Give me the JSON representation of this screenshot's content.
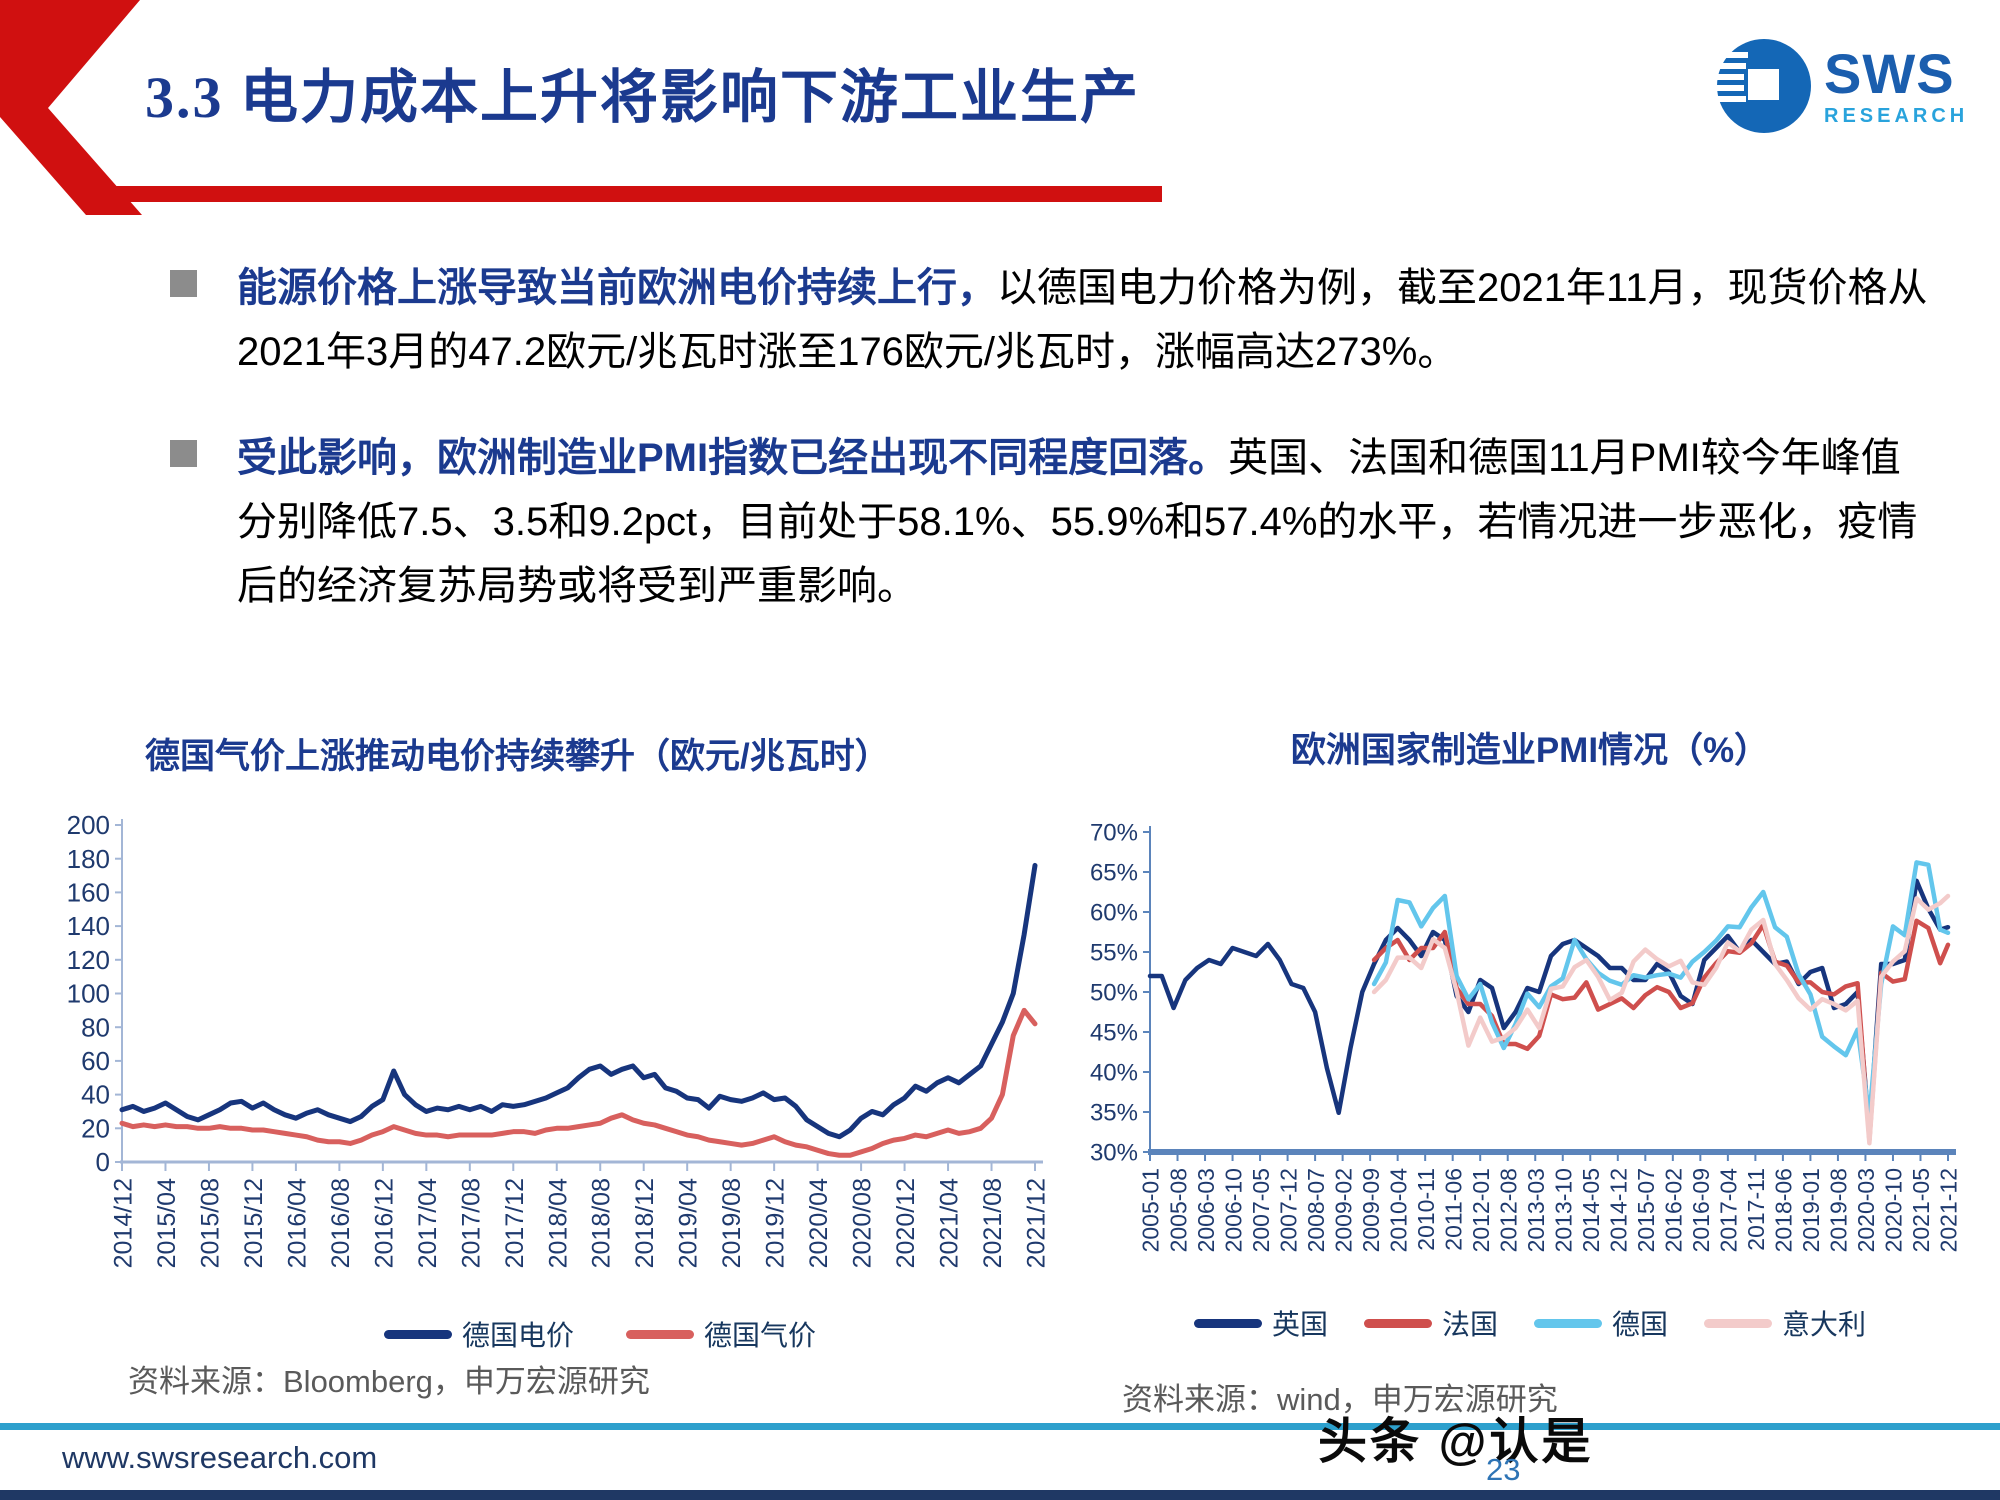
{
  "header": {
    "title": "3.3 电力成本上升将影响下游工业生产",
    "logo": {
      "name": "SWS",
      "subname": "RESEARCH"
    },
    "accent_red": "#d01010",
    "title_blue": "#1b3a8f"
  },
  "bullets": [
    {
      "highlight": "能源价格上涨导致当前欧洲电价持续上行，",
      "body": "以德国电力价格为例，截至2021年11月，现货价格从2021年3月的47.2欧元/兆瓦时涨至176欧元/兆瓦时，涨幅高达273%。"
    },
    {
      "highlight": "受此影响，欧洲制造业PMI指数已经出现不同程度回落。",
      "body": "英国、法国和德国11月PMI较今年峰值分别降低7.5、3.5和9.2pct，目前处于58.1%、55.9%和57.4%的水平，若情况进一步恶化，疫情后的经济复苏局势或将受到严重影响。"
    }
  ],
  "chart_data": [
    {
      "type": "line",
      "title": "德国气价上涨推动电价持续攀升（欧元/兆瓦时）",
      "xlabel": "",
      "ylabel": "",
      "ylim": [
        0,
        200
      ],
      "grid": false,
      "legend_position": "bottom",
      "y_ticks": [
        "200",
        "180",
        "160",
        "140",
        "120",
        "100",
        "80",
        "60",
        "40",
        "20",
        "0"
      ],
      "x_tick_labels": [
        "2014/12",
        "2015/04",
        "2015/08",
        "2015/12",
        "2016/04",
        "2016/08",
        "2016/12",
        "2017/04",
        "2017/08",
        "2017/12",
        "2018/04",
        "2018/08",
        "2018/12",
        "2019/04",
        "2019/08",
        "2019/12",
        "2020/04",
        "2020/08",
        "2020/12",
        "2021/04",
        "2021/08",
        "2021/12"
      ],
      "x_start": "2014/12",
      "total_months": 84,
      "point_interval_months": 1,
      "tick_interval_months": 4,
      "series": [
        {
          "name": "德国电价",
          "color": "#17357d",
          "values": [
            31,
            33,
            30,
            32,
            35,
            31,
            27,
            25,
            28,
            31,
            35,
            36,
            32,
            35,
            31,
            28,
            26,
            29,
            31,
            28,
            26,
            24,
            27,
            33,
            37,
            54,
            40,
            34,
            30,
            32,
            31,
            33,
            31,
            33,
            30,
            34,
            33,
            34,
            36,
            38,
            41,
            44,
            50,
            55,
            57,
            52,
            55,
            57,
            50,
            52,
            44,
            42,
            38,
            37,
            32,
            39,
            37,
            36,
            38,
            41,
            37,
            38,
            33,
            25,
            21,
            17,
            15,
            19,
            26,
            30,
            28,
            34,
            38,
            45,
            42,
            47,
            50,
            47,
            52,
            57,
            70,
            83,
            100,
            135,
            176
          ]
        },
        {
          "name": "德国气价",
          "color": "#d8605e",
          "values": [
            23,
            21,
            22,
            21,
            22,
            21,
            21,
            20,
            20,
            21,
            20,
            20,
            19,
            19,
            18,
            17,
            16,
            15,
            13,
            12,
            12,
            11,
            13,
            16,
            18,
            21,
            19,
            17,
            16,
            16,
            15,
            16,
            16,
            16,
            16,
            17,
            18,
            18,
            17,
            19,
            20,
            20,
            21,
            22,
            23,
            26,
            28,
            25,
            23,
            22,
            20,
            18,
            16,
            15,
            13,
            12,
            11,
            10,
            11,
            13,
            15,
            12,
            10,
            9,
            7,
            5,
            4,
            4,
            6,
            8,
            11,
            13,
            14,
            16,
            15,
            17,
            19,
            17,
            18,
            20,
            26,
            40,
            75,
            90,
            82
          ]
        }
      ]
    },
    {
      "type": "line",
      "title": "欧洲国家制造业PMI情况（%）",
      "xlabel": "",
      "ylabel": "",
      "ylim": [
        30,
        70
      ],
      "grid": false,
      "legend_position": "bottom",
      "y_ticks": [
        "70%",
        "65%",
        "60%",
        "55%",
        "50%",
        "45%",
        "40%",
        "35%",
        "30%"
      ],
      "x_tick_labels": [
        "2005-01",
        "2005-08",
        "2006-03",
        "2006-10",
        "2007-05",
        "2007-12",
        "2008-07",
        "2009-02",
        "2009-09",
        "2010-04",
        "2010-11",
        "2011-06",
        "2012-01",
        "2012-08",
        "2013-03",
        "2013-10",
        "2014-05",
        "2014-12",
        "2015-07",
        "2016-02",
        "2016-09",
        "2017-04",
        "2017-11",
        "2018-06",
        "2019-01",
        "2019-08",
        "2020-03",
        "2020-10",
        "2021-05",
        "2021-12"
      ],
      "x_start": "2005-01",
      "total_months": 203,
      "point_interval_months": 3,
      "tick_interval_months": 7,
      "series": [
        {
          "name": "英国",
          "color": "#17357d",
          "values": [
            52.0,
            52.0,
            48.0,
            51.5,
            53.0,
            54.0,
            53.5,
            55.5,
            55.0,
            54.5,
            56.0,
            54.0,
            51.0,
            50.5,
            47.5,
            40.5,
            34.9,
            43.0,
            50.0,
            53.5,
            56.5,
            58.0,
            56.5,
            54.5,
            57.5,
            56.5,
            49.5,
            47.5,
            51.5,
            50.5,
            45.5,
            47.5,
            50.5,
            50.0,
            54.5,
            56.0,
            56.5,
            55.5,
            54.5,
            53.0,
            53.0,
            51.5,
            51.5,
            53.5,
            52.5,
            49.5,
            48.5,
            54.0,
            55.5,
            57.0,
            55.0,
            56.5,
            55.0,
            53.5,
            53.8,
            51.0,
            52.5,
            53.0,
            48.0,
            48.5,
            50.0,
            32.6,
            53.5,
            53.5,
            54.0,
            63.9,
            60.4,
            57.8,
            58.1
          ]
        },
        {
          "name": "法国",
          "color": "#cf4f4d",
          "values": [
            null,
            null,
            null,
            null,
            null,
            null,
            null,
            null,
            null,
            null,
            null,
            null,
            null,
            null,
            null,
            null,
            null,
            null,
            null,
            54.0,
            55.5,
            56.5,
            54.0,
            55.5,
            55.5,
            57.5,
            50.5,
            48.5,
            48.5,
            47.0,
            43.5,
            43.5,
            42.9,
            44.5,
            49.7,
            49.1,
            49.3,
            51.2,
            47.8,
            48.5,
            49.2,
            48.0,
            49.6,
            50.6,
            50.0,
            48.0,
            48.6,
            51.8,
            53.6,
            55.1,
            54.9,
            56.1,
            58.4,
            53.8,
            53.3,
            51.2,
            51.2,
            50.0,
            49.7,
            50.7,
            51.1,
            31.5,
            52.4,
            51.3,
            51.6,
            58.9,
            58.0,
            53.6,
            55.9
          ]
        },
        {
          "name": "德国",
          "color": "#63c6ec",
          "values": [
            null,
            null,
            null,
            null,
            null,
            null,
            null,
            null,
            null,
            null,
            null,
            null,
            null,
            null,
            null,
            null,
            null,
            null,
            null,
            51.0,
            53.7,
            61.5,
            61.2,
            58.2,
            60.5,
            62.0,
            52.0,
            49.1,
            51.0,
            46.2,
            43.0,
            46.0,
            49.8,
            48.1,
            50.7,
            51.7,
            56.5,
            54.1,
            52.4,
            51.4,
            50.9,
            52.1,
            51.8,
            52.1,
            52.3,
            51.8,
            53.8,
            55.0,
            56.4,
            58.2,
            58.1,
            60.6,
            62.5,
            58.1,
            56.9,
            52.2,
            49.7,
            44.4,
            43.2,
            42.1,
            45.3,
            34.5,
            51.0,
            58.2,
            57.1,
            66.2,
            65.9,
            57.8,
            57.4
          ]
        },
        {
          "name": "意大利",
          "color": "#f3cbca",
          "values": [
            null,
            null,
            null,
            null,
            null,
            null,
            null,
            null,
            null,
            null,
            null,
            null,
            null,
            null,
            null,
            null,
            null,
            null,
            null,
            50.0,
            51.5,
            54.3,
            54.3,
            53.0,
            56.6,
            55.5,
            50.1,
            43.3,
            46.8,
            43.8,
            44.3,
            45.5,
            47.8,
            45.5,
            50.4,
            50.7,
            53.1,
            54.0,
            51.9,
            49.0,
            49.9,
            53.8,
            55.3,
            54.1,
            53.2,
            53.9,
            51.2,
            50.9,
            53.0,
            56.2,
            55.1,
            57.8,
            59.0,
            53.5,
            51.5,
            49.2,
            47.8,
            49.1,
            48.5,
            47.7,
            48.9,
            31.1,
            51.9,
            53.8,
            55.1,
            61.7,
            60.3,
            61.1,
            62.0
          ]
        }
      ]
    }
  ],
  "sources": {
    "left": "资料来源：Bloomberg，申万宏源研究",
    "right": "资料来源：wind，申万宏源研究"
  },
  "footer": {
    "url": "www.swsresearch.com",
    "watermark": "头条 @认是",
    "page": "23",
    "line_color": "#2da0cd"
  }
}
